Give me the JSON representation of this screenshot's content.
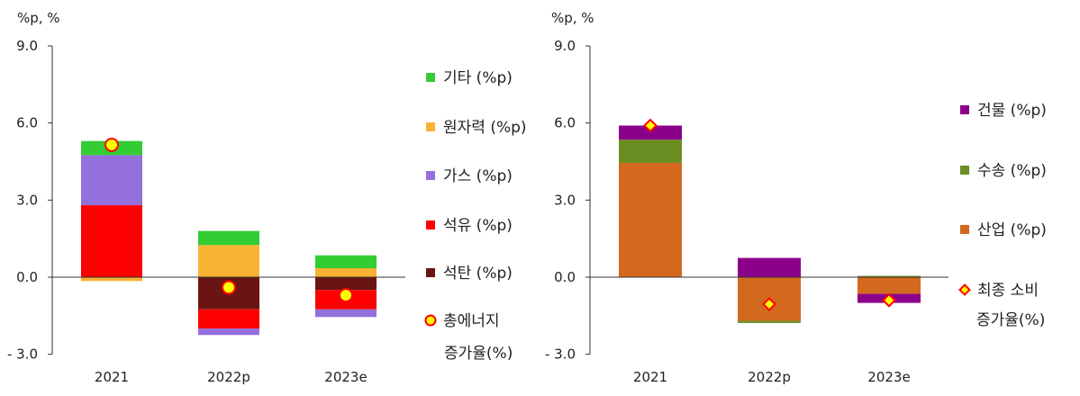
{
  "chart_data": [
    {
      "type": "bar",
      "stacked": true,
      "unit_label": "%p, %",
      "categories": [
        "2021",
        "2022p",
        "2023e"
      ],
      "ylim": [
        -3.0,
        9.0
      ],
      "ytick_labels": [
        "9.0",
        "6.0",
        "3.0",
        "0.0",
        "- 3.0"
      ],
      "ytick_values": [
        9,
        6,
        3,
        0,
        -3
      ],
      "series": [
        {
          "name": "석탄 (%p)",
          "color": "#6b1414",
          "values": [
            0.0,
            -1.25,
            -0.5
          ]
        },
        {
          "name": "석유 (%p)",
          "color": "#ff0000",
          "values": [
            2.8,
            -0.75,
            -0.75
          ]
        },
        {
          "name": "가스 (%p)",
          "color": "#9370db",
          "values": [
            1.95,
            -0.25,
            -0.3
          ]
        },
        {
          "name": "원자력 (%p)",
          "color": "#f9b233",
          "values": [
            -0.15,
            1.25,
            0.35
          ]
        },
        {
          "name": "기타 (%p)",
          "color": "#33cc33",
          "values": [
            0.55,
            0.55,
            0.5
          ]
        }
      ],
      "line_series": {
        "name": "총에너지 증가율(%)",
        "values": [
          5.15,
          -0.4,
          -0.7
        ],
        "marker_fill": "#ffff00",
        "marker_edge": "#ff0000"
      },
      "legend": {
        "placement": "right",
        "items": [
          {
            "label": "기타 (%p)",
            "color": "#33cc33",
            "marker": "square"
          },
          {
            "label": "원자력 (%p)",
            "color": "#f9b233",
            "marker": "square"
          },
          {
            "label": "가스 (%p)",
            "color": "#9370db",
            "marker": "square"
          },
          {
            "label": "석유 (%p)",
            "color": "#ff0000",
            "marker": "square"
          },
          {
            "label": "석탄 (%p)",
            "color": "#6b1414",
            "marker": "square"
          },
          {
            "label": "총에너지",
            "label2": "증가율(%)",
            "color": "#ffff00",
            "edge": "#ff0000",
            "marker": "circle"
          }
        ]
      }
    },
    {
      "type": "bar",
      "stacked": true,
      "unit_label": "%p, %",
      "categories": [
        "2021",
        "2022p",
        "2023e"
      ],
      "ylim": [
        -3.0,
        9.0
      ],
      "ytick_labels": [
        "9.0",
        "6.0",
        "3.0",
        "0.0",
        "- 3.0"
      ],
      "ytick_values": [
        9,
        6,
        3,
        0,
        -3
      ],
      "series": [
        {
          "name": "산업 (%p)",
          "color": "#d2691e",
          "values": [
            4.45,
            -1.7,
            -0.65
          ]
        },
        {
          "name": "수송 (%p)",
          "color": "#6b8e23",
          "values": [
            0.9,
            -0.08,
            0.05
          ]
        },
        {
          "name": "건물 (%p)",
          "color": "#8b008b",
          "values": [
            0.55,
            0.75,
            -0.35
          ]
        }
      ],
      "line_series": {
        "name": "최종 소비 증가율(%)",
        "values": [
          5.9,
          -1.05,
          -0.9
        ],
        "marker_fill": "#ffff00",
        "marker_edge": "#ff0000"
      },
      "legend": {
        "placement": "right",
        "items": [
          {
            "label": "건물 (%p)",
            "color": "#8b008b",
            "marker": "square"
          },
          {
            "label": "수송 (%p)",
            "color": "#6b8e23",
            "marker": "square"
          },
          {
            "label": "산업 (%p)",
            "color": "#d2691e",
            "marker": "square"
          },
          {
            "label": "최종 소비",
            "label2": "증가율(%)",
            "color": "#ffff00",
            "edge": "#ff0000",
            "marker": "diamond"
          }
        ]
      }
    }
  ]
}
